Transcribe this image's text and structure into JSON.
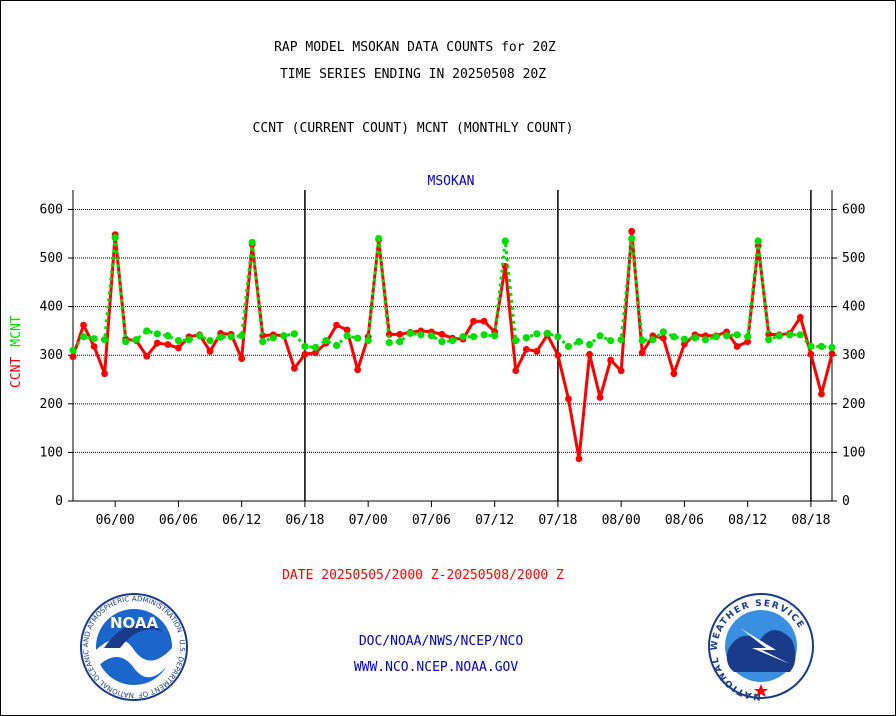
{
  "header": {
    "line1": "RAP MODEL MSOKAN DATA COUNTS for 20Z",
    "line2": "TIME SERIES ENDING IN 20250508 20Z",
    "line3": "CCNT (CURRENT COUNT) MCNT (MONTHLY COUNT)"
  },
  "footer": {
    "date_range": "DATE 20250505/2000 Z-20250508/2000 Z",
    "org_path": "DOC/NOAA/NWS/NCEP/NCO",
    "website": "WWW.NCO.NCEP.NOAA.GOV"
  },
  "logos": {
    "noaa_text": "NOAA",
    "noaa_ring_text": "NATIONAL OCEANIC AND ATMOSPHERIC ADMINISTRATION · U.S. DEPARTMENT OF COMMERCE ·",
    "nws_ring_text": "NATIONAL WEATHER SERVICE"
  },
  "colors": {
    "ccnt": "#ff0000",
    "mcnt": "#00e000",
    "title": "#0000cc",
    "date": "#ff0000",
    "links": "#0000cc"
  },
  "chart_data": {
    "type": "line",
    "title": "MSOKAN",
    "ylabel_parts": [
      {
        "text": "CCNT",
        "color": "#ff0000"
      },
      {
        "text": "MCNT",
        "color": "#00e000"
      }
    ],
    "ylim": [
      0,
      640
    ],
    "yticks": [
      0,
      100,
      200,
      300,
      400,
      500,
      600
    ],
    "grid": true,
    "x_start_hour": -4,
    "x_end_hour": 68,
    "xticks": [
      {
        "hour": 0,
        "label": "06/00"
      },
      {
        "hour": 6,
        "label": "06/06"
      },
      {
        "hour": 12,
        "label": "06/12"
      },
      {
        "hour": 18,
        "label": "06/18"
      },
      {
        "hour": 24,
        "label": "07/00"
      },
      {
        "hour": 30,
        "label": "07/06"
      },
      {
        "hour": 36,
        "label": "07/12"
      },
      {
        "hour": 42,
        "label": "07/18"
      },
      {
        "hour": 48,
        "label": "08/00"
      },
      {
        "hour": 54,
        "label": "08/06"
      },
      {
        "hour": 60,
        "label": "08/12"
      },
      {
        "hour": 66,
        "label": "08/18"
      }
    ],
    "day_boundaries": [
      18,
      42,
      66
    ],
    "series": [
      {
        "name": "CCNT",
        "color": "#ff0000",
        "values": [
          297,
          362,
          318,
          262,
          548,
          333,
          330,
          298,
          325,
          322,
          315,
          338,
          342,
          308,
          345,
          343,
          293,
          528,
          340,
          342,
          340,
          273,
          302,
          305,
          325,
          362,
          352,
          270,
          338,
          538,
          343,
          343,
          347,
          350,
          348,
          343,
          335,
          333,
          370,
          370,
          348,
          483,
          268,
          312,
          308,
          342,
          300,
          210,
          87,
          302,
          213,
          290,
          268,
          555,
          305,
          340,
          335,
          262,
          323,
          342,
          340,
          340,
          348,
          318,
          328,
          525,
          343,
          342,
          345,
          378,
          302,
          220,
          303
        ]
      },
      {
        "name": "MCNT",
        "color": "#00e000",
        "values": [
          310,
          338,
          334,
          332,
          542,
          328,
          332,
          350,
          344,
          340,
          330,
          332,
          340,
          330,
          337,
          338,
          340,
          532,
          328,
          336,
          340,
          344,
          318,
          316,
          330,
          320,
          340,
          335,
          330,
          540,
          326,
          328,
          345,
          342,
          340,
          328,
          330,
          338,
          338,
          342,
          340,
          535,
          330,
          336,
          344,
          345,
          338,
          318,
          328,
          322,
          340,
          330,
          332,
          540,
          330,
          332,
          348,
          338,
          333,
          336,
          332,
          338,
          340,
          342,
          338,
          535,
          332,
          340,
          342,
          342,
          318,
          318,
          316
        ]
      }
    ]
  }
}
